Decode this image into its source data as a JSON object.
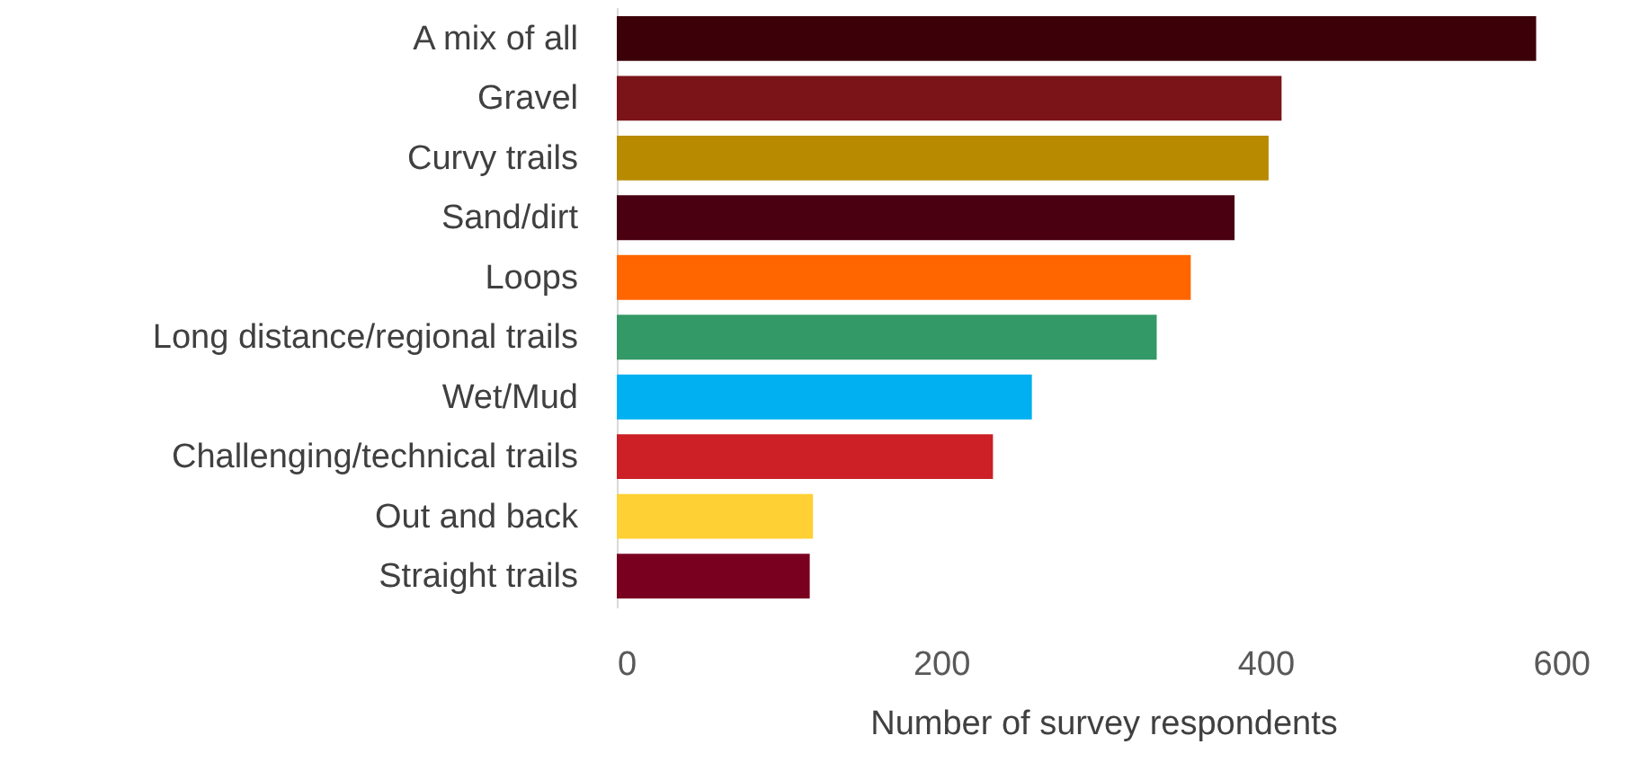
{
  "chart_data": {
    "type": "bar",
    "orientation": "horizontal",
    "xlabel": "Number  of survey respondents",
    "categories": [
      "A mix of all",
      "Gravel",
      "Curvy trails",
      "Sand/dirt",
      "Loops",
      "Long distance/regional trails",
      "Wet/Mud",
      "Challenging/technical trails",
      "Out and back",
      "Straight trails"
    ],
    "values": [
      567,
      410,
      402,
      381,
      354,
      333,
      256,
      232,
      121,
      119
    ],
    "colors": [
      "#3b0008",
      "#7b1418",
      "#b88a00",
      "#4a0010",
      "#ff6600",
      "#339966",
      "#00b0f0",
      "#cc1f26",
      "#ffd033",
      "#7a0020"
    ],
    "xlim": [
      0,
      600
    ],
    "xticks": [
      0,
      200,
      400,
      600
    ],
    "grid": false
  }
}
